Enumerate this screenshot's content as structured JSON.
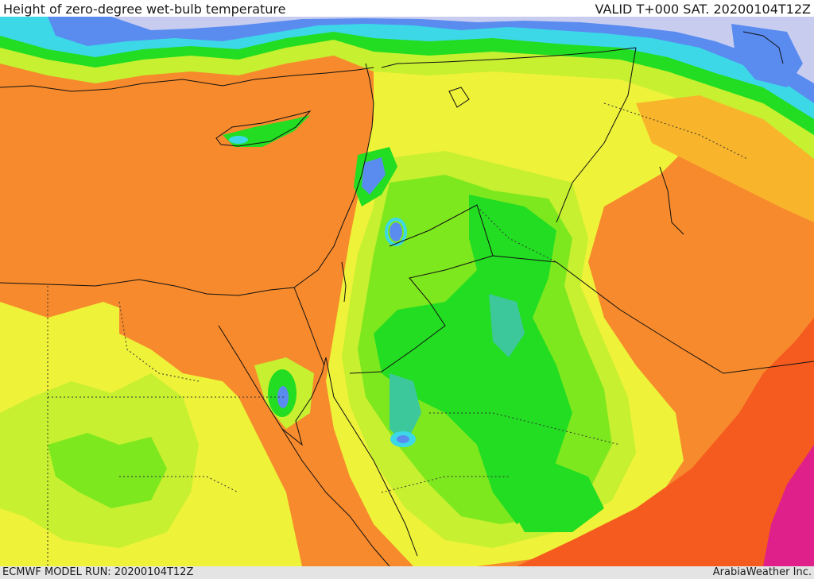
{
  "header": {
    "title": "Height of zero-degree wet-bulb temperature",
    "valid": "VALID T+000 SAT. 20200104T12Z"
  },
  "footer": {
    "model_run": "ECMWF MODEL RUN: 20200104T12Z",
    "credit": "ArabiaWeather Inc."
  },
  "colors": {
    "very_low": "#c8cdf0",
    "low_blue": "#5a8cf0",
    "cyan": "#3cd8e8",
    "teal": "#3cc89a",
    "green": "#22dd22",
    "light_green": "#7ee81e",
    "yellow_green": "#c6f030",
    "yellow": "#eef238",
    "orange_yellow": "#f8b42a",
    "orange": "#f78a2c",
    "red_orange": "#f55a1e",
    "magenta": "#e0208a"
  }
}
